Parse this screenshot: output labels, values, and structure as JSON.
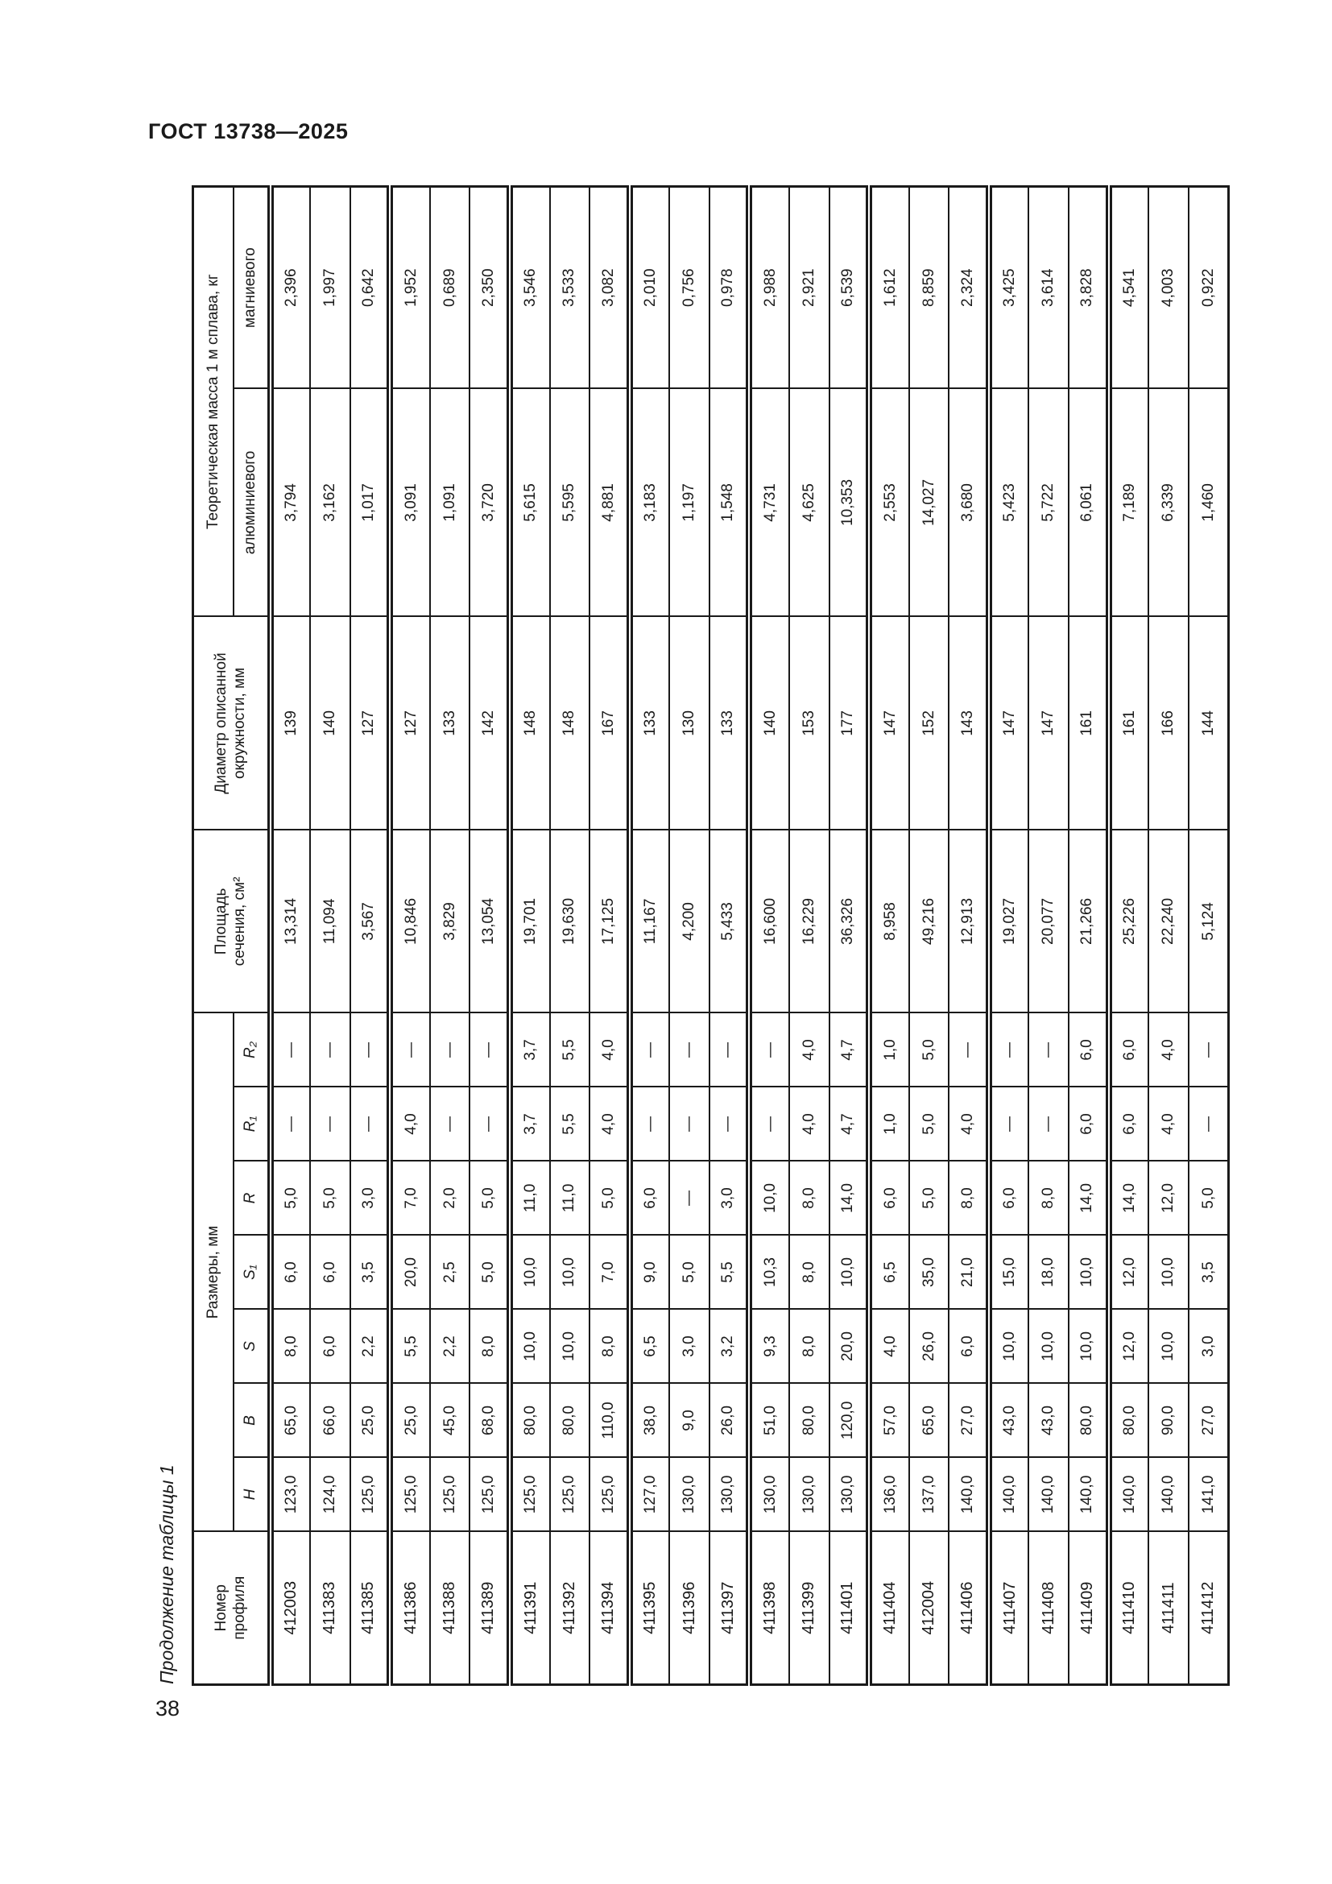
{
  "page": {
    "doc_header": "ГОСТ 13738—2025",
    "page_number": "38",
    "table_caption": "Продолжение таблицы 1"
  },
  "table": {
    "headers": {
      "profile": "Номер\nпрофиля",
      "dimensions": "Размеры, мм",
      "dim_cols": [
        "H",
        "B",
        "S",
        "S₁",
        "R",
        "R₁",
        "R₂"
      ],
      "area": "Площадь\nсечения, см²",
      "diameter": "Диаметр описанной\nокружности, мм",
      "mass": "Теоретическая масса 1 м сплава, кг",
      "mass_al": "алюминиевого",
      "mass_mg": "магниевого"
    },
    "columns_order": [
      "num",
      "H",
      "B",
      "S",
      "S1",
      "R",
      "R1",
      "R2",
      "area",
      "diameter",
      "mass_al",
      "mass_mg"
    ],
    "rows": [
      [
        "412003",
        "123,0",
        "65,0",
        "8,0",
        "6,0",
        "5,0",
        "—",
        "—",
        "13,314",
        "139",
        "3,794",
        "2,396"
      ],
      [
        "411383",
        "124,0",
        "66,0",
        "6,0",
        "6,0",
        "5,0",
        "—",
        "—",
        "11,094",
        "140",
        "3,162",
        "1,997"
      ],
      [
        "411385",
        "125,0",
        "25,0",
        "2,2",
        "3,5",
        "3,0",
        "—",
        "—",
        "3,567",
        "127",
        "1,017",
        "0,642"
      ],
      [
        "411386",
        "125,0",
        "25,0",
        "5,5",
        "20,0",
        "7,0",
        "4,0",
        "—",
        "10,846",
        "127",
        "3,091",
        "1,952"
      ],
      [
        "411388",
        "125,0",
        "45,0",
        "2,2",
        "2,5",
        "2,0",
        "—",
        "—",
        "3,829",
        "133",
        "1,091",
        "0,689"
      ],
      [
        "411389",
        "125,0",
        "68,0",
        "8,0",
        "5,0",
        "5,0",
        "—",
        "—",
        "13,054",
        "142",
        "3,720",
        "2,350"
      ],
      [
        "411391",
        "125,0",
        "80,0",
        "10,0",
        "10,0",
        "11,0",
        "3,7",
        "3,7",
        "19,701",
        "148",
        "5,615",
        "3,546"
      ],
      [
        "411392",
        "125,0",
        "80,0",
        "10,0",
        "10,0",
        "11,0",
        "5,5",
        "5,5",
        "19,630",
        "148",
        "5,595",
        "3,533"
      ],
      [
        "411394",
        "125,0",
        "110,0",
        "8,0",
        "7,0",
        "5,0",
        "4,0",
        "4,0",
        "17,125",
        "167",
        "4,881",
        "3,082"
      ],
      [
        "411395",
        "127,0",
        "38,0",
        "6,5",
        "9,0",
        "6,0",
        "—",
        "—",
        "11,167",
        "133",
        "3,183",
        "2,010"
      ],
      [
        "411396",
        "130,0",
        "9,0",
        "3,0",
        "5,0",
        "—",
        "—",
        "—",
        "4,200",
        "130",
        "1,197",
        "0,756"
      ],
      [
        "411397",
        "130,0",
        "26,0",
        "3,2",
        "5,5",
        "3,0",
        "—",
        "—",
        "5,433",
        "133",
        "1,548",
        "0,978"
      ],
      [
        "411398",
        "130,0",
        "51,0",
        "9,3",
        "10,3",
        "10,0",
        "—",
        "—",
        "16,600",
        "140",
        "4,731",
        "2,988"
      ],
      [
        "411399",
        "130,0",
        "80,0",
        "8,0",
        "8,0",
        "8,0",
        "4,0",
        "4,0",
        "16,229",
        "153",
        "4,625",
        "2,921"
      ],
      [
        "411401",
        "130,0",
        "120,0",
        "20,0",
        "10,0",
        "14,0",
        "4,7",
        "4,7",
        "36,326",
        "177",
        "10,353",
        "6,539"
      ],
      [
        "411404",
        "136,0",
        "57,0",
        "4,0",
        "6,5",
        "6,0",
        "1,0",
        "1,0",
        "8,958",
        "147",
        "2,553",
        "1,612"
      ],
      [
        "412004",
        "137,0",
        "65,0",
        "26,0",
        "35,0",
        "5,0",
        "5,0",
        "5,0",
        "49,216",
        "152",
        "14,027",
        "8,859"
      ],
      [
        "411406",
        "140,0",
        "27,0",
        "6,0",
        "21,0",
        "8,0",
        "4,0",
        "—",
        "12,913",
        "143",
        "3,680",
        "2,324"
      ],
      [
        "411407",
        "140,0",
        "43,0",
        "10,0",
        "15,0",
        "6,0",
        "—",
        "—",
        "19,027",
        "147",
        "5,423",
        "3,425"
      ],
      [
        "411408",
        "140,0",
        "43,0",
        "10,0",
        "18,0",
        "8,0",
        "—",
        "—",
        "20,077",
        "147",
        "5,722",
        "3,614"
      ],
      [
        "411409",
        "140,0",
        "80,0",
        "10,0",
        "10,0",
        "14,0",
        "6,0",
        "6,0",
        "21,266",
        "161",
        "6,061",
        "3,828"
      ],
      [
        "411410",
        "140,0",
        "80,0",
        "12,0",
        "12,0",
        "14,0",
        "6,0",
        "6,0",
        "25,226",
        "161",
        "7,189",
        "4,541"
      ],
      [
        "411411",
        "140,0",
        "90,0",
        "10,0",
        "10,0",
        "12,0",
        "4,0",
        "4,0",
        "22,240",
        "166",
        "6,339",
        "4,003"
      ],
      [
        "411412",
        "141,0",
        "27,0",
        "3,0",
        "3,5",
        "5,0",
        "—",
        "—",
        "5,124",
        "144",
        "1,460",
        "0,922"
      ]
    ],
    "group_rule_after_rows": [
      3,
      6,
      9,
      12,
      15,
      18,
      21
    ]
  }
}
